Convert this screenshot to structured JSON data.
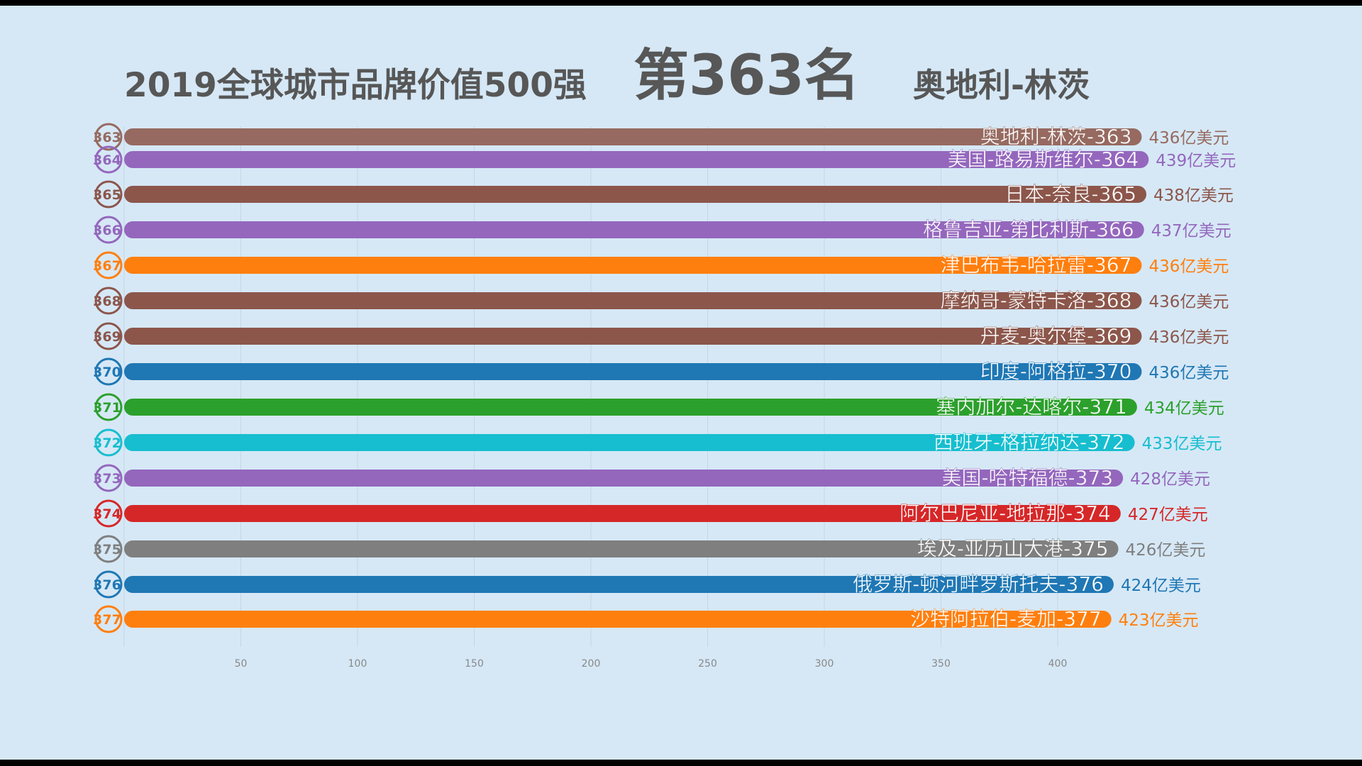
{
  "title": {
    "main": "2019全球城市品牌价值500强",
    "rank": "第363名",
    "city": "奥地利-林茨"
  },
  "chart_data": {
    "type": "bar",
    "orientation": "horizontal",
    "unit_suffix": "亿美元",
    "xlim": [
      0,
      440
    ],
    "xticks": [
      50,
      100,
      150,
      200,
      250,
      300,
      350,
      400
    ],
    "grid": true,
    "rows": [
      {
        "rank": "363",
        "label": "奥地利-林茨-363",
        "value": 436,
        "value_label": "436亿美元",
        "color": "#966a60"
      },
      {
        "rank": "364",
        "label": "美国-路易斯维尔-364",
        "value": 439,
        "value_label": "439亿美元",
        "color": "#9467bd"
      },
      {
        "rank": "365",
        "label": "日本-奈良-365",
        "value": 438,
        "value_label": "438亿美元",
        "color": "#8c564b"
      },
      {
        "rank": "366",
        "label": "格鲁吉亚-第比利斯-366",
        "value": 437,
        "value_label": "437亿美元",
        "color": "#9467bd"
      },
      {
        "rank": "367",
        "label": "津巴布韦-哈拉雷-367",
        "value": 436,
        "value_label": "436亿美元",
        "color": "#ff7f0e"
      },
      {
        "rank": "368",
        "label": "摩纳哥-蒙特卡洛-368",
        "value": 436,
        "value_label": "436亿美元",
        "color": "#8c564b"
      },
      {
        "rank": "369",
        "label": "丹麦-奥尔堡-369",
        "value": 436,
        "value_label": "436亿美元",
        "color": "#8c564b"
      },
      {
        "rank": "370",
        "label": "印度-阿格拉-370",
        "value": 436,
        "value_label": "436亿美元",
        "color": "#1f77b4"
      },
      {
        "rank": "371",
        "label": "塞内加尔-达喀尔-371",
        "value": 434,
        "value_label": "434亿美元",
        "color": "#2ca02c"
      },
      {
        "rank": "372",
        "label": "西班牙-格拉纳达-372",
        "value": 433,
        "value_label": "433亿美元",
        "color": "#17becf"
      },
      {
        "rank": "373",
        "label": "美国-哈特福德-373",
        "value": 428,
        "value_label": "428亿美元",
        "color": "#9467bd"
      },
      {
        "rank": "374",
        "label": "阿尔巴尼亚-地拉那-374",
        "value": 427,
        "value_label": "427亿美元",
        "color": "#d62728"
      },
      {
        "rank": "375",
        "label": "埃及-亚历山大港-375",
        "value": 426,
        "value_label": "426亿美元",
        "color": "#7f7f7f"
      },
      {
        "rank": "376",
        "label": "俄罗斯-顿河畔罗斯托夫-376",
        "value": 424,
        "value_label": "424亿美元",
        "color": "#1f77b4"
      },
      {
        "rank": "377",
        "label": "沙特阿拉伯-麦加-377",
        "value": 423,
        "value_label": "423亿美元",
        "color": "#ff7f0e"
      }
    ]
  }
}
